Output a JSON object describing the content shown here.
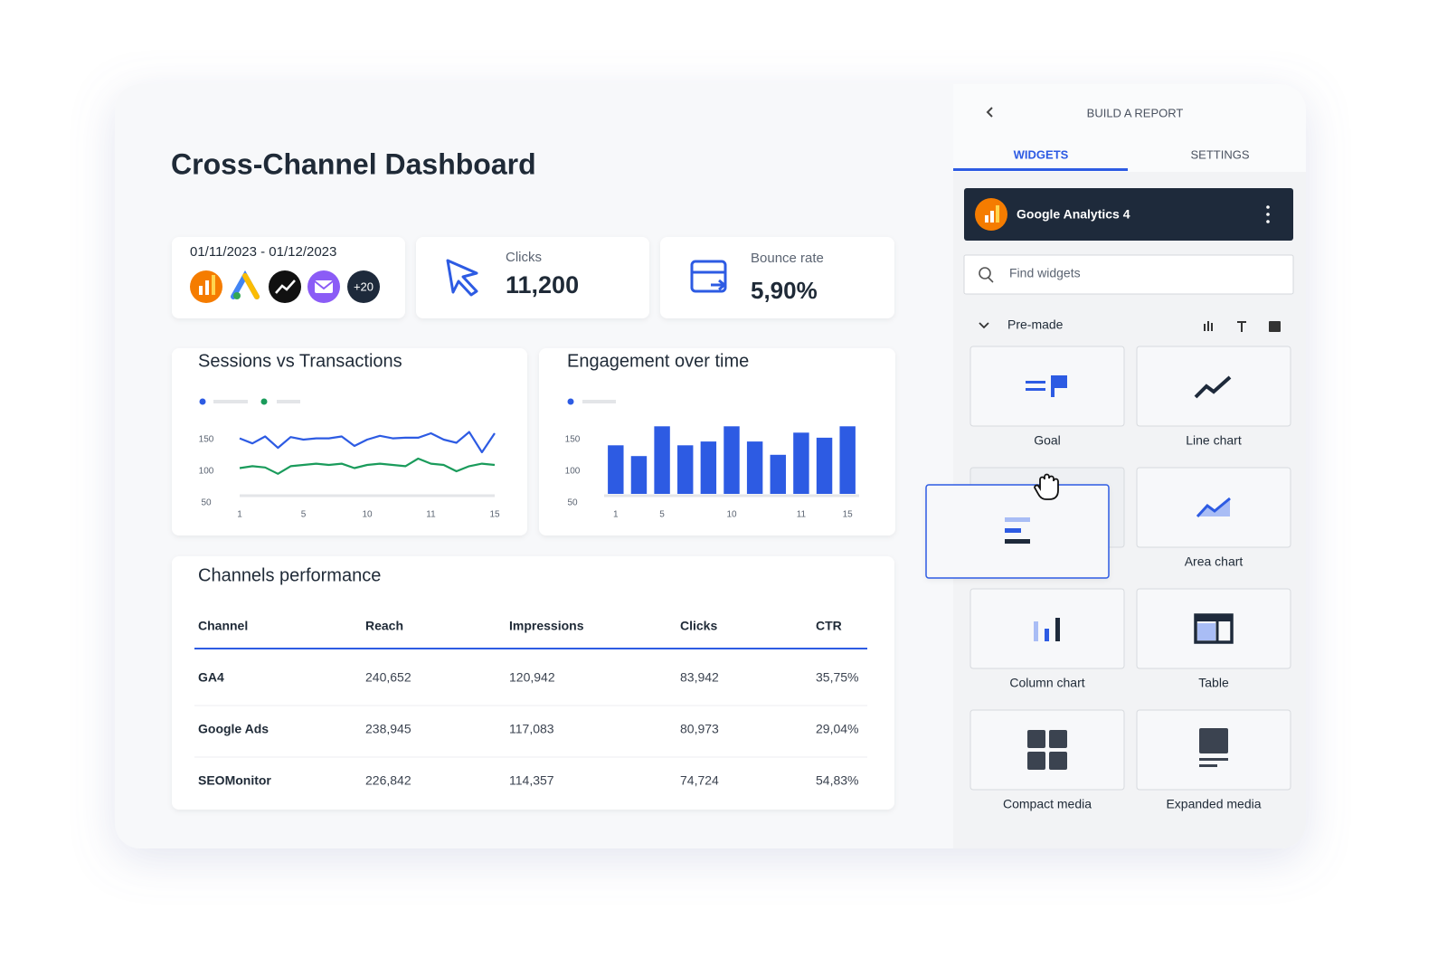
{
  "dashboard": {
    "title": "Cross-Channel Dashboard",
    "date_range": "01/11/2023 - 01/12/2023",
    "more_sources": "+20",
    "kpis": [
      {
        "label": "Clicks",
        "value": "11,200"
      },
      {
        "label": "Bounce rate",
        "value": "5,90%"
      }
    ],
    "sessions_chart": {
      "type": "line",
      "title": "Sessions vs Transactions",
      "categories": [
        1,
        null,
        null,
        null,
        null,
        5,
        null,
        null,
        null,
        null,
        10,
        null,
        null,
        null,
        null,
        11,
        null,
        null,
        null,
        null,
        15
      ],
      "series": [
        {
          "color": "#2d5be3",
          "values": [
            152,
            144,
            155,
            137,
            154,
            150,
            152,
            152,
            155,
            140,
            150,
            156,
            152,
            153,
            153,
            160,
            150,
            145,
            162,
            130,
            160
          ]
        },
        {
          "color": "#1a9b5b",
          "values": [
            105,
            108,
            106,
            96,
            108,
            110,
            112,
            110,
            112,
            105,
            110,
            112,
            110,
            108,
            120,
            112,
            110,
            100,
            108,
            112,
            110
          ]
        }
      ],
      "ylim": [
        50,
        180
      ],
      "yticks": [
        50,
        100,
        150
      ]
    },
    "engagement_chart": {
      "type": "bar",
      "title": "Engagement over time",
      "categories": [
        1,
        null,
        5,
        null,
        null,
        10,
        null,
        null,
        11,
        null,
        15
      ],
      "values": [
        141,
        124,
        171,
        141,
        147,
        171,
        147,
        126,
        161,
        153,
        171
      ],
      "color": "#2d5be3",
      "ylim": [
        50,
        180
      ],
      "yticks": [
        50,
        100,
        150
      ]
    },
    "channels_table": {
      "title": "Channels performance",
      "columns": [
        "Channel",
        "Reach",
        "Impressions",
        "Clicks",
        "CTR"
      ],
      "rows": [
        [
          "GA4",
          "240,652",
          "120,942",
          "83,942",
          "35,75%"
        ],
        [
          "Google Ads",
          "238,945",
          "117,083",
          "80,973",
          "29,04%"
        ],
        [
          "SEOMonitor",
          "226,842",
          "114,357",
          "74,724",
          "54,83%"
        ]
      ]
    }
  },
  "panel": {
    "title": "BUILD A REPORT",
    "tabs": [
      "WIDGETS",
      "SETTINGS"
    ],
    "source": "Google Analytics 4",
    "search_placeholder": "Find widgets",
    "section": "Pre-made",
    "widgets": [
      "Goal",
      "Line chart",
      "Area chart",
      "Column chart",
      "Table",
      "Compact media",
      "Expanded media"
    ]
  }
}
